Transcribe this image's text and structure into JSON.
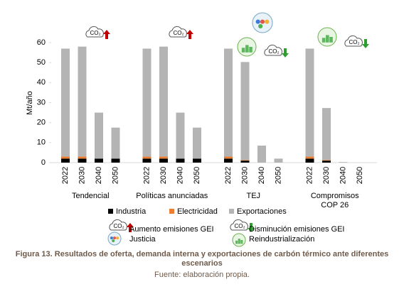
{
  "chart_data": {
    "type": "bar",
    "stacked": true,
    "y_label": "Mt/año",
    "categories": [
      "2022",
      "2030",
      "2040",
      "2050",
      "2022",
      "2030",
      "2040",
      "2050",
      "2022",
      "2030",
      "2040",
      "2050",
      "2022",
      "2030",
      "2040",
      "2050"
    ],
    "groups": [
      "Tendencial",
      "Políticas anunciadas",
      "TEJ",
      "Compromisos\nCOP 26"
    ],
    "series": [
      {
        "name": "Industria",
        "color": "#000000",
        "values": [
          2,
          2,
          2,
          2,
          2,
          2,
          2,
          2,
          2,
          1,
          0,
          0,
          2,
          1,
          0,
          0
        ]
      },
      {
        "name": "Electricidad",
        "color": "#ed7d31",
        "values": [
          1,
          1,
          0,
          0,
          1,
          1,
          0,
          0,
          1,
          0.3,
          0,
          0,
          1,
          0.3,
          0,
          0
        ]
      },
      {
        "name": "Exportaciones",
        "color": "#b4b4b4",
        "values": [
          54,
          55,
          23,
          15.5,
          54,
          55,
          23,
          15.5,
          54,
          49,
          8.5,
          2,
          54,
          26,
          0.3,
          0
        ]
      }
    ],
    "ylim": [
      0,
      60
    ],
    "yticks": [
      0,
      10,
      20,
      30,
      40,
      50,
      60
    ],
    "grid": false,
    "icon_text": "CO₂",
    "icon_legend": [
      "Aumento emisiones GEI",
      "Disminución emisiones GEI",
      "Justicia",
      "Reindustrialización"
    ]
  },
  "caption": {
    "title": "Figura 13. Resultados de oferta, demanda interna y exportaciones de carbón térmico ante diferentes escenarios",
    "source": "Fuente: elaboración propia."
  }
}
